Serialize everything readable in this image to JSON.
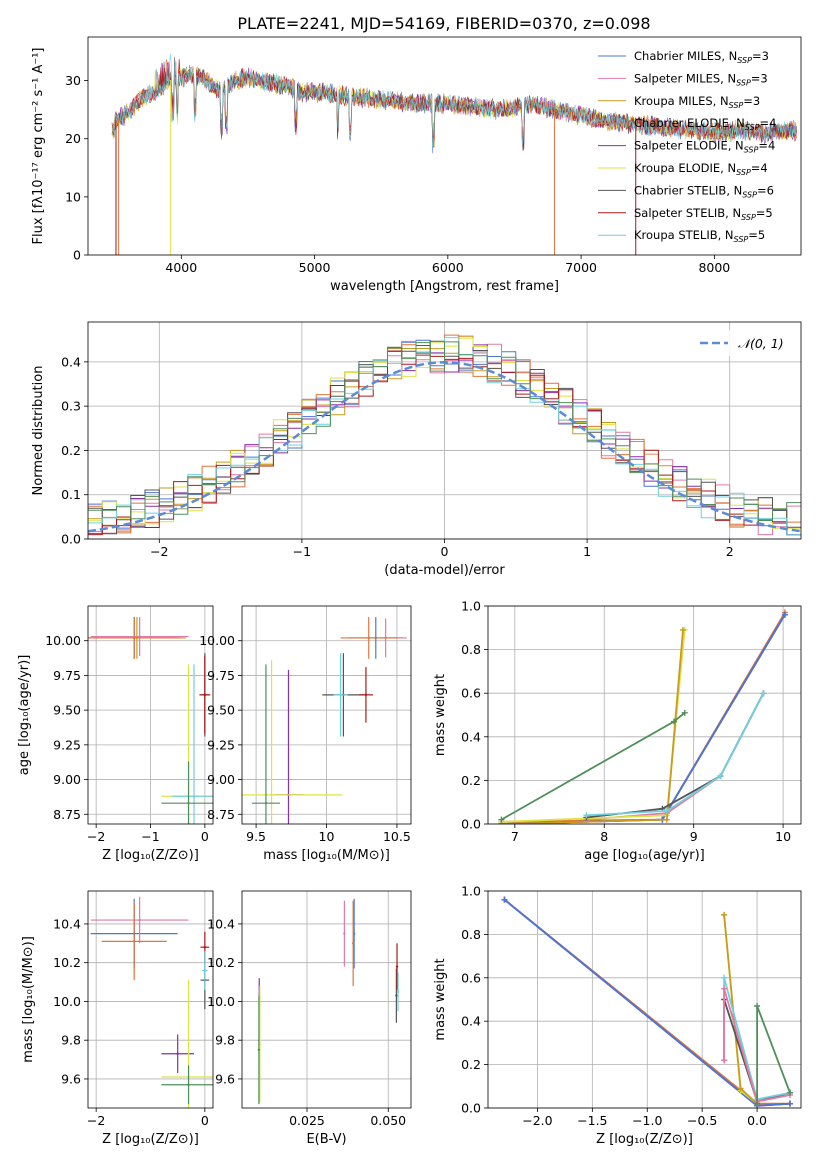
{
  "figure_title": "PLATE=2241, MJD=54169, FIBERID=0370, z=0.098",
  "colors": {
    "Chabrier MILES": "#4a76d4",
    "Salpeter MILES": "#e07aa8",
    "Kroupa MILES": "#c99a1e",
    "Chabrier ELODIE": "#e0743a",
    "Salpeter ELODIE": "#8a2fa8",
    "Kroupa ELODIE": "#dde345",
    "Chabrier STELIB": "#555555",
    "Salpeter STELIB": "#b01818",
    "Kroupa STELIB": "#6fd0e0",
    "extra_green": "#4f8f5a",
    "normal_curve": "#5b8ad8"
  },
  "chart_data": [
    {
      "id": "spectrum",
      "type": "line",
      "title": "PLATE=2241, MJD=54169, FIBERID=0370, z=0.098",
      "xlabel": "wavelength [Angstrom, rest frame]",
      "ylabel": "Flux [fλ10⁻¹⁷ erg cm⁻² s⁻¹ A⁻¹]",
      "xlim": [
        3300,
        8650
      ],
      "ylim": [
        0,
        37.5
      ],
      "xticks": [
        4000,
        5000,
        6000,
        7000,
        8000
      ],
      "yticks": [
        0,
        10,
        20,
        30
      ],
      "grid": false,
      "legend_position": "top-right",
      "spectrum_points": [
        [
          3500,
          23
        ],
        [
          3600,
          24.5
        ],
        [
          3700,
          27
        ],
        [
          3800,
          28
        ],
        [
          3900,
          30
        ],
        [
          4000,
          30.5
        ],
        [
          4100,
          31
        ],
        [
          4200,
          30
        ],
        [
          4300,
          28
        ],
        [
          4400,
          30
        ],
        [
          4500,
          30.5
        ],
        [
          4600,
          30
        ],
        [
          4700,
          29.5
        ],
        [
          4800,
          29
        ],
        [
          4900,
          28
        ],
        [
          5000,
          28
        ],
        [
          5200,
          27.5
        ],
        [
          5400,
          27
        ],
        [
          5600,
          26.5
        ],
        [
          5800,
          26
        ],
        [
          6000,
          26
        ],
        [
          6200,
          25.5
        ],
        [
          6400,
          25
        ],
        [
          6600,
          26
        ],
        [
          6800,
          25
        ],
        [
          7000,
          24
        ],
        [
          7200,
          23
        ],
        [
          7400,
          22.5
        ],
        [
          7600,
          22
        ],
        [
          7800,
          21.5
        ],
        [
          8000,
          21
        ],
        [
          8200,
          21.5
        ],
        [
          8400,
          21
        ],
        [
          8600,
          21.5
        ]
      ],
      "drop_lines": [
        {
          "model": "Salpeter STELIB",
          "x": 3510
        },
        {
          "model": "Chabrier ELODIE",
          "x": 3530
        },
        {
          "model": "Kroupa ELODIE",
          "x": 3920
        },
        {
          "model": "Chabrier ELODIE",
          "x": 6800
        },
        {
          "model": "Salpeter STELIB",
          "x": 7410
        }
      ],
      "legend": [
        {
          "model": "Chabrier MILES",
          "label": "Chabrier MILES, N",
          "sub": "SSP",
          "suffix": "=3"
        },
        {
          "model": "Salpeter MILES",
          "label": "Salpeter MILES, N",
          "sub": "SSP",
          "suffix": "=3"
        },
        {
          "model": "Kroupa MILES",
          "label": "Kroupa MILES, N",
          "sub": "SSP",
          "suffix": "=3"
        },
        {
          "model": "Chabrier ELODIE",
          "label": "Chabrier ELODIE, N",
          "sub": "SSP",
          "suffix": "=4"
        },
        {
          "model": "Salpeter ELODIE",
          "label": "Salpeter ELODIE, N",
          "sub": "SSP",
          "suffix": "=4"
        },
        {
          "model": "Kroupa ELODIE",
          "label": "Kroupa ELODIE, N",
          "sub": "SSP",
          "suffix": "=4"
        },
        {
          "model": "Chabrier STELIB",
          "label": "Chabrier STELIB, N",
          "sub": "SSP",
          "suffix": "=6"
        },
        {
          "model": "Salpeter STELIB",
          "label": "Salpeter STELIB, N",
          "sub": "SSP",
          "suffix": "=5"
        },
        {
          "model": "Kroupa STELIB",
          "label": "Kroupa STELIB, N",
          "sub": "SSP",
          "suffix": "=5"
        }
      ]
    },
    {
      "id": "residuals",
      "type": "line",
      "xlabel": "(data-model)/error",
      "ylabel": "Normed distribution",
      "xlim": [
        -2.5,
        2.5
      ],
      "ylim": [
        0,
        0.49
      ],
      "xticks": [
        -2,
        -1,
        0,
        1,
        2
      ],
      "yticks": [
        0.0,
        0.1,
        0.2,
        0.3,
        0.4
      ],
      "grid": true,
      "legend_position": "top-right",
      "legend": [
        {
          "label": "𝒩(0, 1)",
          "color_key": "normal_curve",
          "style": "dashed"
        }
      ],
      "bin_width": 0.1,
      "normal": {
        "mean": 0,
        "sigma": 1
      }
    },
    {
      "id": "age_vs_Z",
      "type": "scatter",
      "xlabel": "Z [log₁₀(Z/Z⊙)]",
      "ylabel": "age  [log₁₀(age/yr)]",
      "xlim": [
        -2.15,
        0.15
      ],
      "ylim": [
        8.68,
        10.25
      ],
      "xticks": [
        -2,
        -1,
        0
      ],
      "yticks": [
        8.75,
        9.0,
        9.25,
        9.5,
        9.75,
        10.0
      ],
      "grid": true,
      "points": [
        {
          "model": "Chabrier MILES",
          "x": -1.3,
          "xerr": 0.8,
          "y": 10.02,
          "yerr": 0.15
        },
        {
          "model": "Salpeter MILES",
          "x": -1.2,
          "xerr": 0.9,
          "y": 10.03,
          "yerr": 0.14
        },
        {
          "model": "Kroupa MILES",
          "x": -1.25,
          "xerr": 0.9,
          "y": 10.02,
          "yerr": 0.15
        },
        {
          "model": "Chabrier ELODIE",
          "x": -1.3,
          "xerr": 0.85,
          "y": 10.02,
          "yerr": 0.15
        },
        {
          "model": "Kroupa ELODIE",
          "x": -0.3,
          "xerr": 0.5,
          "y": 8.88,
          "yerr": 0.95
        },
        {
          "model": "Chabrier STELIB",
          "x": 0.0,
          "xerr": 0.08,
          "y": 9.61,
          "yerr": 0.3
        },
        {
          "model": "Salpeter STELIB",
          "x": 0.0,
          "xerr": 0.1,
          "y": 9.61,
          "yerr": 0.28
        },
        {
          "model": "Kroupa STELIB",
          "x": -0.2,
          "xerr": 0.4,
          "y": 8.88,
          "yerr": 0.95
        },
        {
          "model": "extra_green",
          "x": -0.3,
          "xerr": 0.5,
          "y": 8.83,
          "yerr": 0.3
        }
      ]
    },
    {
      "id": "age_vs_mass",
      "type": "scatter",
      "xlabel": "mass [log₁₀(M/M⊙)]",
      "ylabel": "",
      "xlim": [
        9.4,
        10.6
      ],
      "ylim": [
        8.68,
        10.25
      ],
      "xticks": [
        9.5,
        10.0,
        10.5
      ],
      "yticks": [
        8.75,
        9.0,
        9.25,
        9.5,
        9.75,
        10.0
      ],
      "grid": true,
      "points": [
        {
          "model": "Chabrier MILES",
          "x": 10.35,
          "xerr": 0.2,
          "y": 10.02,
          "yerr": 0.15
        },
        {
          "model": "Salpeter MILES",
          "x": 10.42,
          "xerr": 0.15,
          "y": 10.02,
          "yerr": 0.14
        },
        {
          "model": "Chabrier ELODIE",
          "x": 10.3,
          "xerr": 0.2,
          "y": 10.02,
          "yerr": 0.15
        },
        {
          "model": "Salpeter ELODIE",
          "x": 9.73,
          "xerr": 0.1,
          "y": 8.89,
          "yerr": 0.9
        },
        {
          "model": "Kroupa ELODIE",
          "x": 9.61,
          "xerr": 0.5,
          "y": 8.89,
          "yerr": 0.97
        },
        {
          "model": "Chabrier STELIB",
          "x": 10.12,
          "xerr": 0.15,
          "y": 9.61,
          "yerr": 0.3
        },
        {
          "model": "Salpeter STELIB",
          "x": 10.28,
          "xerr": 0.05,
          "y": 9.61,
          "yerr": 0.2
        },
        {
          "model": "Kroupa STELIB",
          "x": 10.1,
          "xerr": 0.05,
          "y": 9.61,
          "yerr": 0.3
        },
        {
          "model": "extra_green",
          "x": 9.57,
          "xerr": 0.1,
          "y": 8.83,
          "yerr": 1.0
        }
      ]
    },
    {
      "id": "weight_vs_age",
      "type": "line",
      "xlabel": "age  [log₁₀(age/yr)]",
      "ylabel": "mass weight",
      "xlim": [
        6.7,
        10.2
      ],
      "ylim": [
        0,
        1.0
      ],
      "xticks": [
        7,
        8,
        9,
        10
      ],
      "yticks": [
        0.0,
        0.2,
        0.4,
        0.6,
        0.8,
        1.0
      ],
      "grid": true,
      "series": [
        {
          "model": "Chabrier ELODIE",
          "x": [
            6.85,
            8.65,
            10.02
          ],
          "y": [
            0.01,
            0.02,
            0.97
          ]
        },
        {
          "model": "Salpeter ELODIE",
          "x": [
            6.85,
            8.65,
            10.02
          ],
          "y": [
            0.0,
            0.02,
            0.96
          ]
        },
        {
          "model": "Chabrier MILES",
          "x": [
            6.85,
            8.65,
            10.02
          ],
          "y": [
            0.0,
            0.02,
            0.96
          ]
        },
        {
          "model": "Salpeter MILES",
          "x": [
            7.8,
            8.7,
            9.3,
            9.78
          ],
          "y": [
            0.02,
            0.05,
            0.22,
            0.6
          ]
        },
        {
          "model": "Kroupa ELODIE",
          "x": [
            6.85,
            8.7,
            8.9
          ],
          "y": [
            0.01,
            0.04,
            0.89
          ]
        },
        {
          "model": "Kroupa MILES",
          "x": [
            6.85,
            8.7,
            8.88
          ],
          "y": [
            0.0,
            0.02,
            0.89
          ]
        },
        {
          "model": "Chabrier STELIB",
          "x": [
            7.8,
            8.65,
            9.3,
            9.78
          ],
          "y": [
            0.03,
            0.07,
            0.22,
            0.6
          ]
        },
        {
          "model": "Kroupa STELIB",
          "x": [
            7.8,
            8.7,
            9.3,
            9.78
          ],
          "y": [
            0.04,
            0.06,
            0.22,
            0.6
          ]
        },
        {
          "model": "extra_green",
          "x": [
            6.85,
            8.78,
            8.9
          ],
          "y": [
            0.02,
            0.47,
            0.51
          ]
        }
      ]
    },
    {
      "id": "mass_vs_Z",
      "type": "scatter",
      "xlabel": "Z [log₁₀(Z/Z⊙)]",
      "ylabel": "mass [log₁₀(M/M⊙)]",
      "xlim": [
        -2.15,
        0.15
      ],
      "ylim": [
        9.45,
        10.57
      ],
      "xticks": [
        -2,
        0
      ],
      "yticks": [
        9.6,
        9.8,
        10.0,
        10.2,
        10.4
      ],
      "grid": true,
      "points": [
        {
          "model": "Chabrier MILES",
          "x": -1.3,
          "xerr": 0.8,
          "y": 10.35,
          "yerr": 0.18
        },
        {
          "model": "Salpeter MILES",
          "x": -1.2,
          "xerr": 0.9,
          "y": 10.42,
          "yerr": 0.12
        },
        {
          "model": "Chabrier ELODIE",
          "x": -1.3,
          "xerr": 0.6,
          "y": 10.31,
          "yerr": 0.2
        },
        {
          "model": "Salpeter ELODIE",
          "x": -0.5,
          "xerr": 0.3,
          "y": 9.73,
          "yerr": 0.1
        },
        {
          "model": "Kroupa ELODIE",
          "x": -0.3,
          "xerr": 0.5,
          "y": 9.61,
          "yerr": 0.5
        },
        {
          "model": "Chabrier STELIB",
          "x": 0.0,
          "xerr": 0.08,
          "y": 10.11,
          "yerr": 0.15
        },
        {
          "model": "Salpeter STELIB",
          "x": 0.0,
          "xerr": 0.08,
          "y": 10.28,
          "yerr": 0.08
        },
        {
          "model": "Kroupa STELIB",
          "x": 0.0,
          "xerr": 0.05,
          "y": 10.16,
          "yerr": 0.1
        },
        {
          "model": "extra_green",
          "x": -0.3,
          "xerr": 0.5,
          "y": 9.57,
          "yerr": 0.1
        }
      ]
    },
    {
      "id": "mass_vs_EBV",
      "type": "scatter",
      "xlabel": "E(B-V)",
      "ylabel": "",
      "xlim": [
        0.005,
        0.057
      ],
      "ylim": [
        9.45,
        10.57
      ],
      "xticks": [
        0.025,
        0.05
      ],
      "xticklabels": [
        "0.025",
        "0.050"
      ],
      "yticks": [
        9.6,
        9.8,
        10.0,
        10.2,
        10.4
      ],
      "grid": true,
      "points": [
        {
          "model": "Chabrier MILES",
          "x": 0.0395,
          "xerr": 0.0,
          "y": 10.35,
          "yerr": 0.18
        },
        {
          "model": "Salpeter MILES",
          "x": 0.0365,
          "xerr": 0.0,
          "y": 10.35,
          "yerr": 0.17
        },
        {
          "model": "Chabrier ELODIE",
          "x": 0.0392,
          "xerr": 0.0,
          "y": 10.3,
          "yerr": 0.22
        },
        {
          "model": "Salpeter ELODIE",
          "x": 0.0103,
          "xerr": 0.0,
          "y": 9.8,
          "yerr": 0.32
        },
        {
          "model": "Kroupa ELODIE",
          "x": 0.0105,
          "xerr": 0.0,
          "y": 9.78,
          "yerr": 0.3
        },
        {
          "model": "Chabrier STELIB",
          "x": 0.0525,
          "xerr": 0.0,
          "y": 10.03,
          "yerr": 0.14
        },
        {
          "model": "Salpeter STELIB",
          "x": 0.0527,
          "xerr": 0.0,
          "y": 10.18,
          "yerr": 0.12
        },
        {
          "model": "Kroupa STELIB",
          "x": 0.053,
          "xerr": 0.0,
          "y": 10.05,
          "yerr": 0.1
        },
        {
          "model": "extra_green",
          "x": 0.0102,
          "xerr": 0.0,
          "y": 9.75,
          "yerr": 0.28
        }
      ]
    },
    {
      "id": "weight_vs_Z",
      "type": "line",
      "xlabel": "Z [log₁₀(Z/Z⊙)]",
      "ylabel": "mass weight",
      "xlim": [
        -2.45,
        0.4
      ],
      "ylim": [
        0,
        1.0
      ],
      "xticks": [
        -2.0,
        -1.5,
        -1.0,
        -0.5,
        0.0
      ],
      "xticklabels": [
        "−2.0",
        "−1.5",
        "−1.0",
        "−0.5",
        "0.0"
      ],
      "yticks": [
        0.0,
        0.2,
        0.4,
        0.6,
        0.8,
        1.0
      ],
      "grid": true,
      "series": [
        {
          "model": "Chabrier ELODIE",
          "x": [
            -2.3,
            0.0,
            0.3
          ],
          "y": [
            0.96,
            0.02,
            0.02
          ]
        },
        {
          "model": "Salpeter ELODIE",
          "x": [
            -2.3,
            0.0,
            0.3
          ],
          "y": [
            0.96,
            0.01,
            0.02
          ]
        },
        {
          "model": "Chabrier MILES",
          "x": [
            -2.3,
            0.0,
            0.3
          ],
          "y": [
            0.96,
            0.01,
            0.02
          ]
        },
        {
          "model": "Kroupa ELODIE",
          "x": [
            -0.3,
            -0.15,
            0.0
          ],
          "y": [
            0.89,
            0.08,
            0.02
          ]
        },
        {
          "model": "Kroupa MILES",
          "x": [
            -0.3,
            -0.15,
            0.0
          ],
          "y": [
            0.89,
            0.09,
            0.02
          ]
        },
        {
          "model": "Chabrier STELIB",
          "x": [
            -0.3,
            -0.3,
            0.0,
            0.3
          ],
          "y": [
            0.22,
            0.5,
            0.03,
            0.07
          ]
        },
        {
          "model": "Kroupa STELIB",
          "x": [
            -0.3,
            -0.3,
            0.0,
            0.3
          ],
          "y": [
            0.22,
            0.6,
            0.04,
            0.07
          ]
        },
        {
          "model": "Salpeter MILES",
          "x": [
            -0.3,
            -0.3,
            0.0,
            0.3
          ],
          "y": [
            0.22,
            0.55,
            0.03,
            0.06
          ]
        },
        {
          "model": "extra_green",
          "x": [
            0.0,
            0.0,
            0.3
          ],
          "y": [
            0.02,
            0.47,
            0.07
          ]
        }
      ]
    }
  ]
}
